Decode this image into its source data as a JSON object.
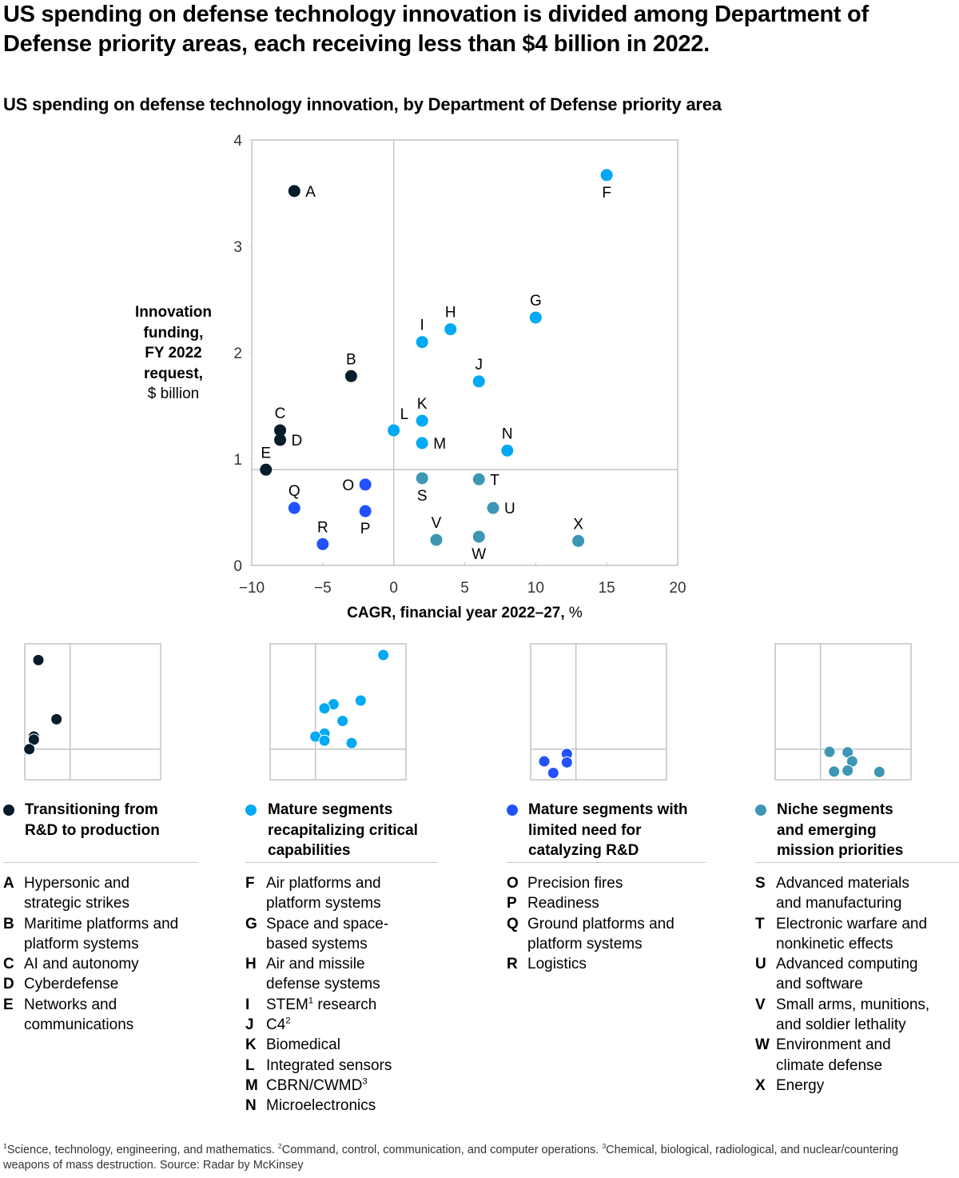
{
  "title": "US spending on defense technology innovation is divided among Department of Defense priority areas, each receiving less than $4 billion in 2022.",
  "subtitle": "US spending on defense technology innovation, by Department of Defense priority area",
  "colors": {
    "transitioning": "#051c2c",
    "mature_recap": "#00a9f4",
    "mature_limited": "#2251ff",
    "niche": "#3c96b4",
    "grid": "#c4c4c4",
    "axis_text": "#333333"
  },
  "chart_data": {
    "type": "scatter",
    "title": "US spending on defense technology innovation, by Department of Defense priority area",
    "xlabel_bold": "CAGR, financial year 2022–27,",
    "xlabel_unit": "%",
    "ylabel_bold_lines": [
      "Innovation",
      "funding,",
      "FY 2022",
      "request,"
    ],
    "ylabel_unit": "$ billion",
    "xlim": [
      -10,
      20
    ],
    "ylim": [
      0,
      4
    ],
    "x_ticks": [
      -10,
      -5,
      0,
      5,
      10,
      15,
      20
    ],
    "x_tick_labels": [
      "−10",
      "−5",
      "0",
      "5",
      "10",
      "15",
      "20"
    ],
    "y_ticks": [
      0,
      1,
      2,
      3,
      4
    ],
    "y_tick_labels": [
      "0",
      "1",
      "2",
      "3",
      "4"
    ],
    "quadrant_dividers": {
      "x": 0,
      "y": 0.9
    },
    "grid": false,
    "series": [
      {
        "name": "Transitioning from R&D to production",
        "color_key": "transitioning",
        "points": [
          {
            "label": "A",
            "x": -7,
            "y": 3.52,
            "label_pos": "right"
          },
          {
            "label": "B",
            "x": -3,
            "y": 1.78,
            "label_pos": "top"
          },
          {
            "label": "C",
            "x": -8,
            "y": 1.27,
            "label_pos": "top"
          },
          {
            "label": "D",
            "x": -8,
            "y": 1.18,
            "label_pos": "right"
          },
          {
            "label": "E",
            "x": -9,
            "y": 0.9,
            "label_pos": "top"
          }
        ]
      },
      {
        "name": "Mature segments recapitalizing critical capabilities",
        "color_key": "mature_recap",
        "points": [
          {
            "label": "F",
            "x": 15,
            "y": 3.67,
            "label_pos": "bottom"
          },
          {
            "label": "G",
            "x": 10,
            "y": 2.33,
            "label_pos": "top"
          },
          {
            "label": "H",
            "x": 4,
            "y": 2.22,
            "label_pos": "top"
          },
          {
            "label": "I",
            "x": 2,
            "y": 2.1,
            "label_pos": "top"
          },
          {
            "label": "J",
            "x": 6,
            "y": 1.73,
            "label_pos": "top"
          },
          {
            "label": "K",
            "x": 2,
            "y": 1.36,
            "label_pos": "top"
          },
          {
            "label": "L",
            "x": 0,
            "y": 1.27,
            "label_pos": "topright"
          },
          {
            "label": "M",
            "x": 2,
            "y": 1.15,
            "label_pos": "right"
          },
          {
            "label": "N",
            "x": 8,
            "y": 1.08,
            "label_pos": "top"
          }
        ]
      },
      {
        "name": "Mature segments with limited need for catalyzing R&D",
        "color_key": "mature_limited",
        "points": [
          {
            "label": "O",
            "x": -2,
            "y": 0.76,
            "label_pos": "left"
          },
          {
            "label": "P",
            "x": -2,
            "y": 0.51,
            "label_pos": "bottom"
          },
          {
            "label": "Q",
            "x": -7,
            "y": 0.54,
            "label_pos": "top"
          },
          {
            "label": "R",
            "x": -5,
            "y": 0.2,
            "label_pos": "top"
          }
        ]
      },
      {
        "name": "Niche segments and emerging mission priorities",
        "color_key": "niche",
        "points": [
          {
            "label": "S",
            "x": 2,
            "y": 0.82,
            "label_pos": "bottom"
          },
          {
            "label": "T",
            "x": 6,
            "y": 0.81,
            "label_pos": "right"
          },
          {
            "label": "U",
            "x": 7,
            "y": 0.54,
            "label_pos": "right"
          },
          {
            "label": "V",
            "x": 3,
            "y": 0.24,
            "label_pos": "top"
          },
          {
            "label": "W",
            "x": 6,
            "y": 0.27,
            "label_pos": "bottom"
          },
          {
            "label": "X",
            "x": 13,
            "y": 0.23,
            "label_pos": "top"
          }
        ]
      }
    ]
  },
  "segments": [
    {
      "key": "transitioning",
      "heading": "Transitioning from\nR&D to production",
      "items": [
        {
          "k": "A",
          "t": "Hypersonic and\nstrategic strikes"
        },
        {
          "k": "B",
          "t": "Maritime platforms and\nplatform systems"
        },
        {
          "k": "C",
          "t": "AI and autonomy"
        },
        {
          "k": "D",
          "t": "Cyberdefense"
        },
        {
          "k": "E",
          "t": "Networks and\ncommunications"
        }
      ]
    },
    {
      "key": "mature_recap",
      "heading": "Mature segments\nrecapitalizing critical\ncapabilities",
      "items": [
        {
          "k": "F",
          "t": "Air platforms and\nplatform systems"
        },
        {
          "k": "G",
          "t": "Space and space-\nbased systems"
        },
        {
          "k": "H",
          "t": "Air and missile\ndefense systems"
        },
        {
          "k": "I",
          "t": "STEM",
          "sup": "1",
          "t2": " research"
        },
        {
          "k": "J",
          "t": "C4",
          "sup": "2",
          "t2": ""
        },
        {
          "k": "K",
          "t": "Biomedical"
        },
        {
          "k": "L",
          "t": "Integrated sensors"
        },
        {
          "k": "M",
          "t": "CBRN/CWMD",
          "sup": "3",
          "t2": ""
        },
        {
          "k": "N",
          "t": "Microelectronics"
        }
      ]
    },
    {
      "key": "mature_limited",
      "heading": "Mature segments with\nlimited need for\ncatalyzing R&D",
      "items": [
        {
          "k": "O",
          "t": "Precision fires"
        },
        {
          "k": "P",
          "t": "Readiness"
        },
        {
          "k": "Q",
          "t": "Ground platforms and\nplatform systems"
        },
        {
          "k": "R",
          "t": "Logistics"
        }
      ]
    },
    {
      "key": "niche",
      "heading": "Niche segments\nand emerging\nmission priorities",
      "items": [
        {
          "k": "S",
          "t": "Advanced materials\nand manufacturing"
        },
        {
          "k": "T",
          "t": "Electronic warfare and\nnonkinetic effects"
        },
        {
          "k": "U",
          "t": "Advanced computing\nand software"
        },
        {
          "k": "V",
          "t": "Small arms, munitions,\nand soldier lethality"
        },
        {
          "k": "W",
          "t": "Environment and\nclimate defense"
        },
        {
          "k": "X",
          "t": "Energy"
        }
      ]
    }
  ],
  "footnote": {
    "parts": [
      {
        "sup": "1",
        "text": "Science, technology, engineering, and mathematics. "
      },
      {
        "sup": "2",
        "text": "Command, control, communication, and computer operations. "
      },
      {
        "sup": "3",
        "text": "Chemical, biological, radiological, and nuclear/countering weapons of mass destruction. Source: Radar by McKinsey"
      }
    ]
  }
}
